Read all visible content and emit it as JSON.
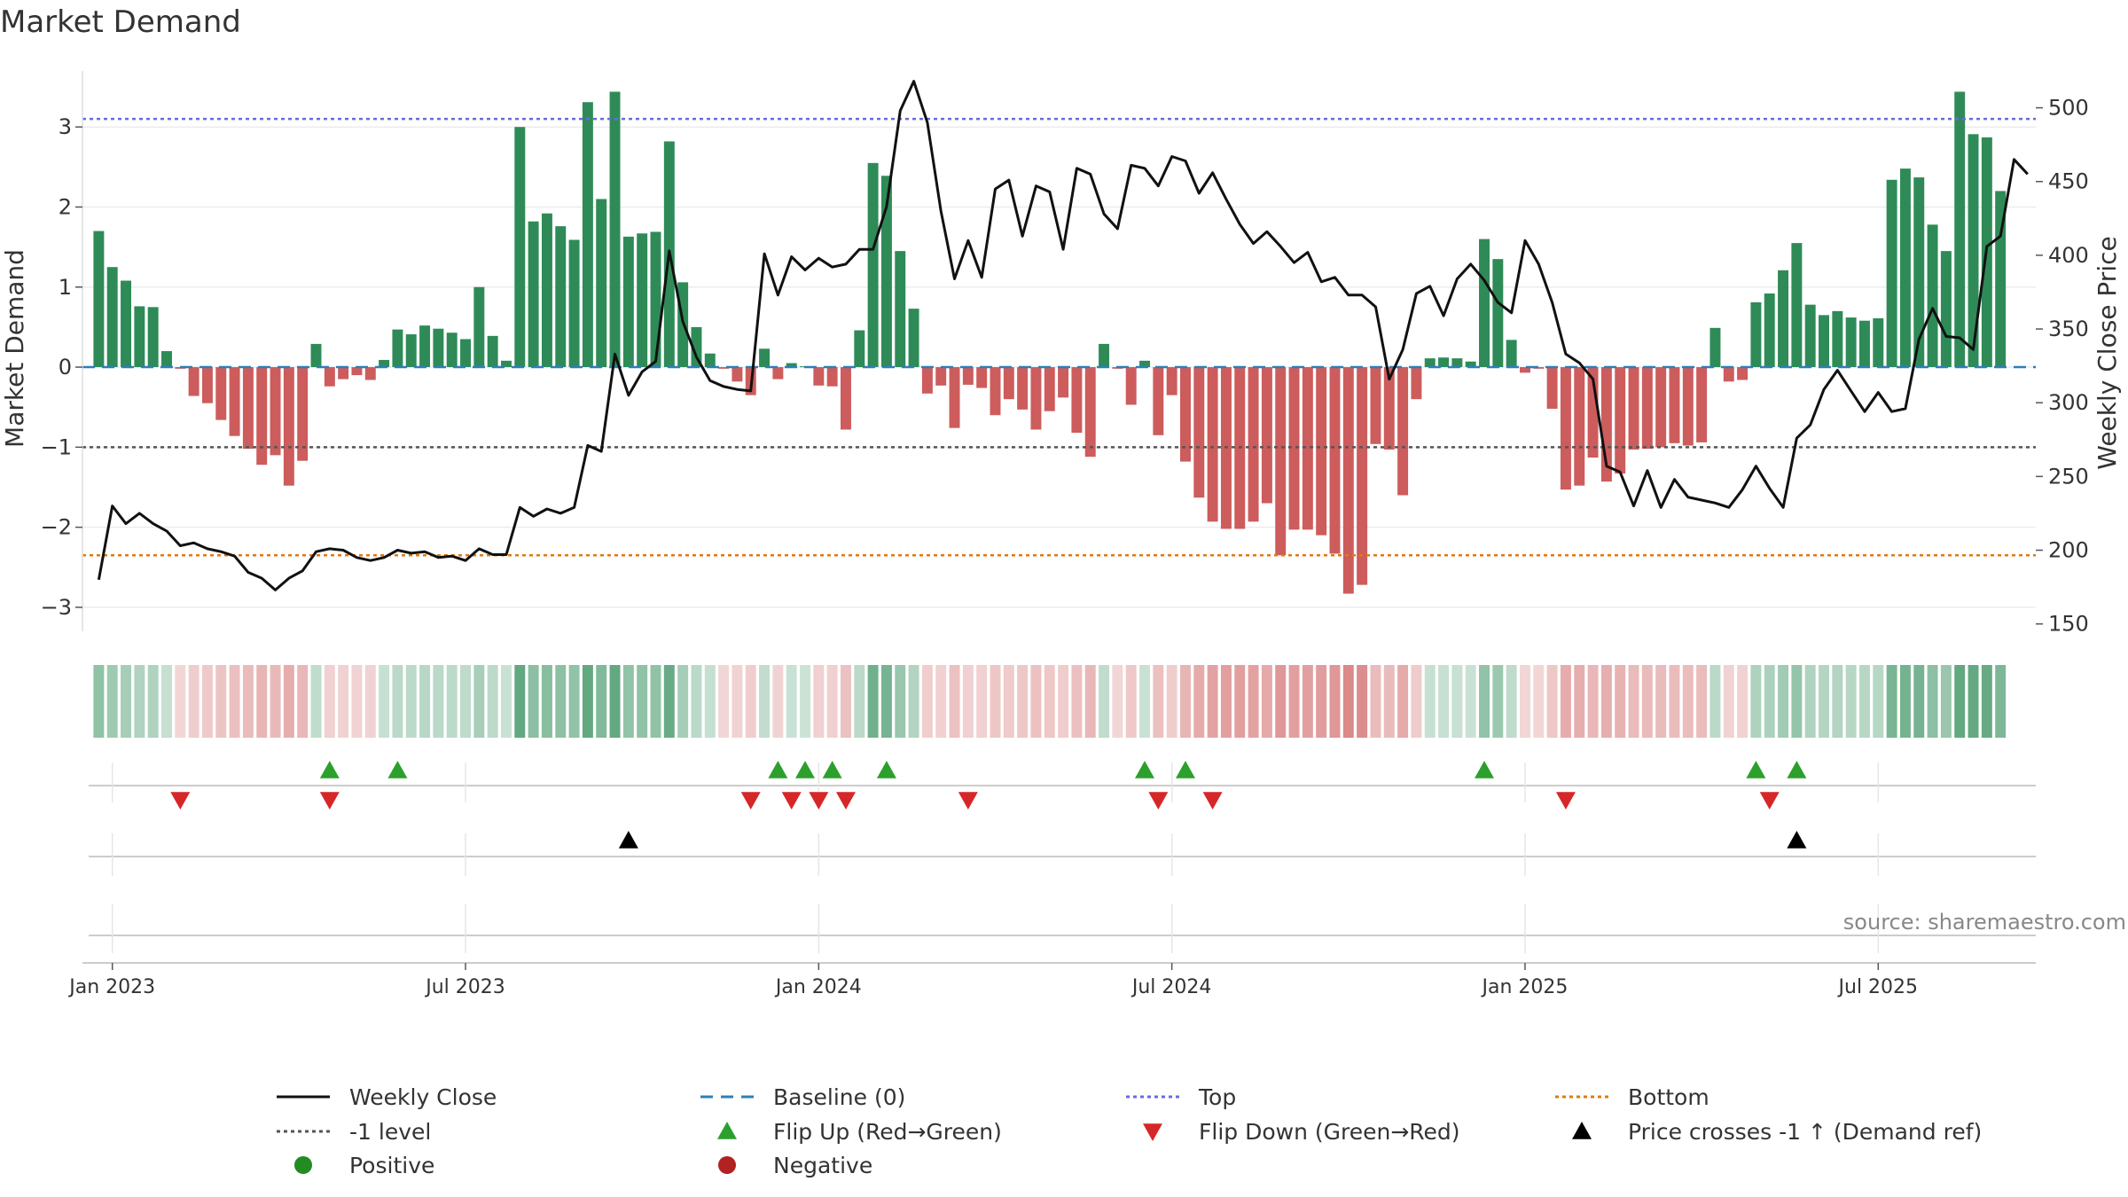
{
  "chart_data": {
    "type": "bar",
    "title": "Market Demand",
    "ylabel": "Market Demand",
    "y2label": "Weekly Close Price",
    "ylim": [
      -3.3,
      3.7
    ],
    "y2lim": [
      145,
      525
    ],
    "yticks": [
      {
        "v": 3,
        "label": "3"
      },
      {
        "v": 2,
        "label": "2"
      },
      {
        "v": 1,
        "label": "1"
      },
      {
        "v": 0,
        "label": "0"
      },
      {
        "v": -1,
        "label": "−1"
      },
      {
        "v": -2,
        "label": "−2"
      },
      {
        "v": -3,
        "label": "−3"
      }
    ],
    "y2ticks": [
      {
        "v": 500,
        "label": "500"
      },
      {
        "v": 450,
        "label": "450"
      },
      {
        "v": 400,
        "label": "400"
      },
      {
        "v": 350,
        "label": "350"
      },
      {
        "v": 300,
        "label": "300"
      },
      {
        "v": 250,
        "label": "250"
      },
      {
        "v": 200,
        "label": "200"
      },
      {
        "v": 150,
        "label": "150"
      }
    ],
    "xticks": [
      {
        "w": 1,
        "label": "Jan 2023"
      },
      {
        "w": 27,
        "label": "Jul 2023"
      },
      {
        "w": 53,
        "label": "Jan 2024"
      },
      {
        "w": 79,
        "label": "Jul 2024"
      },
      {
        "w": 105,
        "label": "Jan 2025"
      },
      {
        "w": 131,
        "label": "Jul 2025"
      }
    ],
    "x_range_weeks": [
      -1.2,
      142.6
    ],
    "reference_lines": {
      "top": 3.1,
      "bottom": -2.35,
      "minus_one": -1,
      "baseline": 0
    },
    "demand": [
      1.7,
      1.25,
      1.08,
      0.76,
      0.75,
      0.2,
      -0.02,
      -0.36,
      -0.45,
      -0.66,
      -0.86,
      -1.02,
      -1.22,
      -1.1,
      -1.48,
      -1.17,
      0.29,
      -0.24,
      -0.15,
      -0.1,
      -0.16,
      0.09,
      0.47,
      0.41,
      0.52,
      0.48,
      0.43,
      0.35,
      1.0,
      0.39,
      0.08,
      3.0,
      1.82,
      1.92,
      1.76,
      1.59,
      3.31,
      2.1,
      3.44,
      1.63,
      1.67,
      1.69,
      2.82,
      1.06,
      0.5,
      0.17,
      -0.02,
      -0.18,
      -0.35,
      0.23,
      -0.15,
      0.05,
      0.01,
      -0.23,
      -0.24,
      -0.78,
      0.46,
      2.55,
      2.39,
      1.45,
      0.73,
      -0.33,
      -0.23,
      -0.76,
      -0.22,
      -0.26,
      -0.6,
      -0.4,
      -0.53,
      -0.78,
      -0.55,
      -0.38,
      -0.82,
      -1.12,
      0.29,
      -0.02,
      -0.47,
      0.08,
      -0.85,
      -0.35,
      -1.18,
      -1.63,
      -1.93,
      -2.02,
      -2.02,
      -1.93,
      -1.7,
      -2.35,
      -2.03,
      -2.03,
      -2.1,
      -2.33,
      -2.83,
      -2.72,
      -0.96,
      -1.03,
      -1.6,
      -0.4,
      0.11,
      0.12,
      0.11,
      0.07,
      1.6,
      1.35,
      0.34,
      -0.07,
      -0.02,
      -0.52,
      -1.53,
      -1.48,
      -1.13,
      -1.43,
      -1.33,
      -1.03,
      -1.02,
      -1.0,
      -0.95,
      -0.98,
      -0.94,
      0.49,
      -0.18,
      -0.16,
      0.81,
      0.92,
      1.21,
      1.55,
      0.78,
      0.65,
      0.7,
      0.62,
      0.58,
      0.61,
      2.34,
      2.48,
      2.37,
      1.78,
      1.45,
      3.44,
      2.91,
      2.87,
      2.2
    ],
    "price": [
      180,
      230,
      218,
      225,
      218,
      213,
      203,
      205,
      201,
      199,
      196,
      185,
      181,
      173,
      181,
      186,
      199,
      201,
      200,
      195,
      193,
      195,
      200,
      198,
      199,
      195,
      196,
      193,
      201,
      197,
      197,
      229,
      223,
      228,
      225,
      229,
      271,
      267,
      333,
      305,
      321,
      328,
      403,
      355,
      331,
      315,
      311,
      309,
      308,
      401,
      373,
      399,
      390,
      398,
      392,
      394,
      404,
      404,
      433,
      498,
      518,
      490,
      430,
      384,
      410,
      385,
      445,
      451,
      413,
      447,
      443,
      404,
      459,
      455,
      428,
      418,
      461,
      459,
      447,
      467,
      464,
      442,
      456,
      438,
      421,
      408,
      416,
      406,
      395,
      402,
      382,
      385,
      373,
      373,
      365,
      316,
      336,
      374,
      379,
      359,
      384,
      394,
      383,
      368,
      361,
      410,
      394,
      368,
      333,
      327,
      316,
      257,
      253,
      230,
      254,
      229,
      248,
      236,
      234,
      232,
      229,
      241,
      257,
      242,
      229,
      276,
      285,
      309,
      322,
      308,
      294,
      307,
      294,
      296,
      343,
      364,
      345,
      344,
      336,
      406,
      413,
      465,
      455
    ],
    "flip_up": [
      17,
      22,
      50,
      52,
      54,
      58,
      77,
      80,
      102,
      122,
      125
    ],
    "flip_down": [
      6,
      17,
      48,
      51,
      53,
      55,
      64,
      78,
      82,
      108,
      123
    ],
    "price_cross_up": [
      39,
      125
    ],
    "source_text": "source: sharemaestro.com",
    "legend": [
      {
        "label": "Weekly Close",
        "kind": "line",
        "color": "#111111"
      },
      {
        "label": "Baseline (0)",
        "kind": "dash",
        "color": "#2c7fb8"
      },
      {
        "label": "Top",
        "kind": "dot",
        "color": "#6a6ae0"
      },
      {
        "label": "Bottom",
        "kind": "dot",
        "color": "#e07a10"
      },
      {
        "label": "-1 level",
        "kind": "dot",
        "color": "#555555"
      },
      {
        "label": "Flip Up (Red→Green)",
        "kind": "tri-up",
        "color": "#2ca02c"
      },
      {
        "label": "Flip Down (Green→Red)",
        "kind": "tri-down",
        "color": "#d62728"
      },
      {
        "label": "Price crosses -1 ↑ (Demand ref)",
        "kind": "tri-up",
        "color": "#000000"
      },
      {
        "label": "Positive",
        "kind": "dot-circle",
        "color": "#228b22"
      },
      {
        "label": "Negative",
        "kind": "dot-circle",
        "color": "#b22222"
      }
    ]
  },
  "colors": {
    "positive_bar": "#2e8b57",
    "negative_bar": "#cd5c5c",
    "heat_pos_rgb": [
      46,
      139,
      87
    ],
    "heat_neg_rgb": [
      205,
      92,
      92
    ]
  }
}
